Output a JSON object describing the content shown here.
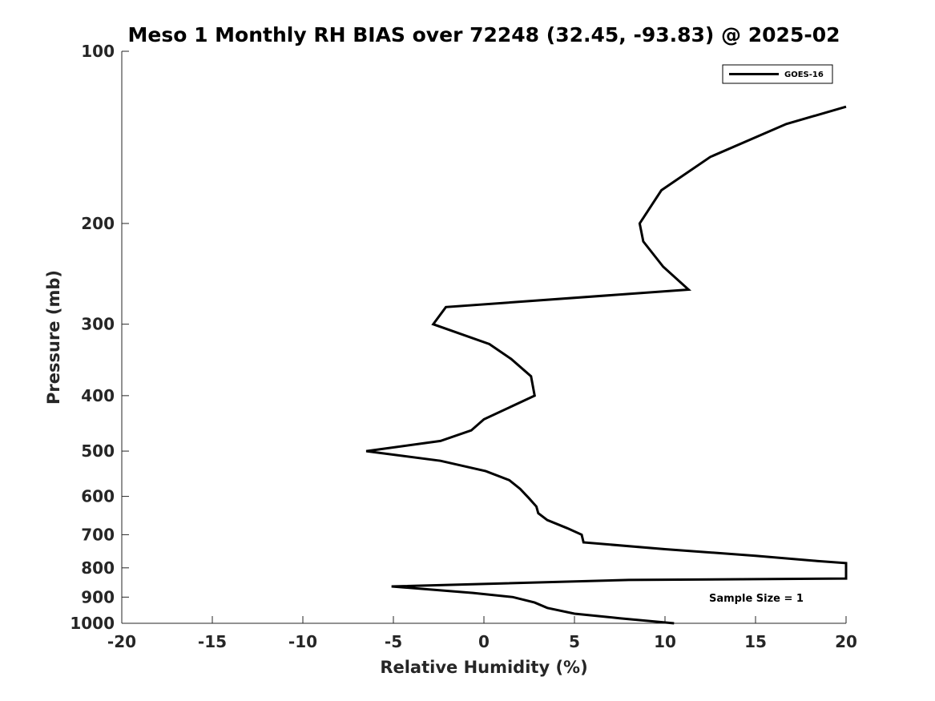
{
  "chart_data": {
    "type": "line",
    "title": "Meso 1 Monthly RH BIAS over 72248 (32.45, -93.83) @ 2025-02",
    "xlabel": "Relative Humidity (%)",
    "ylabel": "Pressure (mb)",
    "xlim": [
      -20,
      20
    ],
    "ylim": [
      100,
      1000
    ],
    "y_scale": "log",
    "y_reversed": true,
    "x_ticks": [
      "-20",
      "-15",
      "-10",
      "-5",
      "0",
      "5",
      "10",
      "15",
      "20"
    ],
    "y_ticks": [
      "100",
      "200",
      "300",
      "400",
      "500",
      "600",
      "700",
      "800",
      "900",
      "1000"
    ],
    "legend_position": "top-right",
    "grid": false,
    "annotation": "Sample Size = 1",
    "series": [
      {
        "name": "GOES-16",
        "color": "#000000",
        "points": [
          {
            "x": 20.0,
            "y": 125
          },
          {
            "x": 16.7,
            "y": 134
          },
          {
            "x": 12.5,
            "y": 153
          },
          {
            "x": 9.8,
            "y": 175
          },
          {
            "x": 8.6,
            "y": 200
          },
          {
            "x": 8.8,
            "y": 215
          },
          {
            "x": 9.9,
            "y": 238
          },
          {
            "x": 11.3,
            "y": 261
          },
          {
            "x": -2.1,
            "y": 280
          },
          {
            "x": -2.8,
            "y": 300
          },
          {
            "x": 0.3,
            "y": 325
          },
          {
            "x": 1.5,
            "y": 345
          },
          {
            "x": 2.6,
            "y": 370
          },
          {
            "x": 2.8,
            "y": 400
          },
          {
            "x": 0.0,
            "y": 440
          },
          {
            "x": -0.7,
            "y": 460
          },
          {
            "x": -2.4,
            "y": 480
          },
          {
            "x": -6.5,
            "y": 500
          },
          {
            "x": -2.4,
            "y": 520
          },
          {
            "x": 0.1,
            "y": 542
          },
          {
            "x": 1.4,
            "y": 562
          },
          {
            "x": 2.0,
            "y": 582
          },
          {
            "x": 2.5,
            "y": 605
          },
          {
            "x": 2.9,
            "y": 625
          },
          {
            "x": 3.0,
            "y": 642
          },
          {
            "x": 3.5,
            "y": 660
          },
          {
            "x": 4.6,
            "y": 682
          },
          {
            "x": 5.4,
            "y": 700
          },
          {
            "x": 5.5,
            "y": 722
          },
          {
            "x": 10.0,
            "y": 742
          },
          {
            "x": 15.0,
            "y": 762
          },
          {
            "x": 18.4,
            "y": 778
          },
          {
            "x": 20.0,
            "y": 785
          },
          {
            "x": 20.0,
            "y": 835
          },
          {
            "x": 8.0,
            "y": 840
          },
          {
            "x": -5.1,
            "y": 862
          },
          {
            "x": -0.6,
            "y": 885
          },
          {
            "x": 1.6,
            "y": 900
          },
          {
            "x": 2.8,
            "y": 920
          },
          {
            "x": 3.5,
            "y": 940
          },
          {
            "x": 5.0,
            "y": 962
          },
          {
            "x": 7.5,
            "y": 980
          },
          {
            "x": 10.5,
            "y": 1000
          }
        ]
      }
    ]
  }
}
